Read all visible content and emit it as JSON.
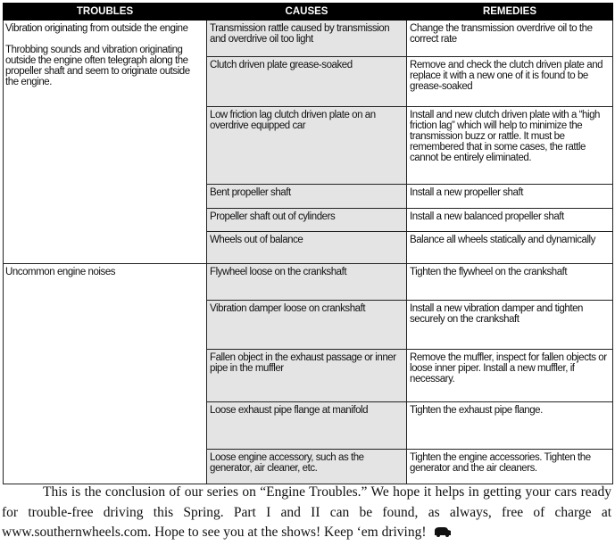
{
  "headers": {
    "troubles": "TROUBLES",
    "causes": "CAUSES",
    "remedies": "REMEDIES"
  },
  "groups": [
    {
      "troubles": [
        "Vibration originating from outside the engine",
        "Throbbing sounds and vibration originating outside the engine often telegraph along the propeller shaft and seem to originate outside the engine."
      ],
      "rows": [
        {
          "cause": "Transmission rattle caused by transmission and overdrive oil too light",
          "remedy": "Change the transmission overdrive oil to the correct rate"
        },
        {
          "cause": "Clutch driven plate grease-soaked",
          "remedy": "Remove and check the clutch driven plate and replace it with a new one of it is found to be grease-soaked"
        },
        {
          "cause": "Low friction lag clutch driven plate on an overdrive equipped car",
          "remedy": "Install and new clutch driven plate with a “high friction lag” which will help to minimize the transmission buzz or rattle. It must be remembered that in some cases, the rattle cannot be entirely eliminated."
        },
        {
          "cause": "Bent propeller shaft",
          "remedy": "Install a new propeller shaft"
        },
        {
          "cause": "Propeller shaft out of cylinders",
          "remedy": "Install a new balanced propeller shaft"
        },
        {
          "cause": "Wheels out of balance",
          "remedy": "Balance all wheels statically and dynamically"
        }
      ]
    },
    {
      "troubles": [
        "Uncommon engine noises"
      ],
      "rows": [
        {
          "cause": "Flywheel loose on the crankshaft",
          "remedy": "Tighten the flywheel on the crankshaft"
        },
        {
          "cause": "Vibration damper loose on crankshaft",
          "remedy": "Install a new vibration damper and tighten securely on the crankshaft"
        },
        {
          "cause": "Fallen object in the exhaust passage or inner pipe in the muffler",
          "remedy": "Remove the muffler, inspect for fallen objects or loose inner piper.  Install a new muffler, if necessary."
        },
        {
          "cause": "Loose exhaust pipe flange at manifold",
          "remedy": "Tighten the exhaust pipe flange."
        },
        {
          "cause": "Loose engine accessory, such as the generator, air cleaner, etc.",
          "remedy": "Tighten the engine accessories.  Tighten the generator and the air cleaners."
        }
      ]
    }
  ],
  "conclusion": "This is the conclusion of our series on “Engine Troubles.”  We hope it helps in getting your cars ready for trouble-free driving this Spring.  Part I and II can be found, as always, free of charge at www.southernwheels.com.  Hope to see you at the shows!  Keep ‘em driving!",
  "end_icon": "car-icon"
}
